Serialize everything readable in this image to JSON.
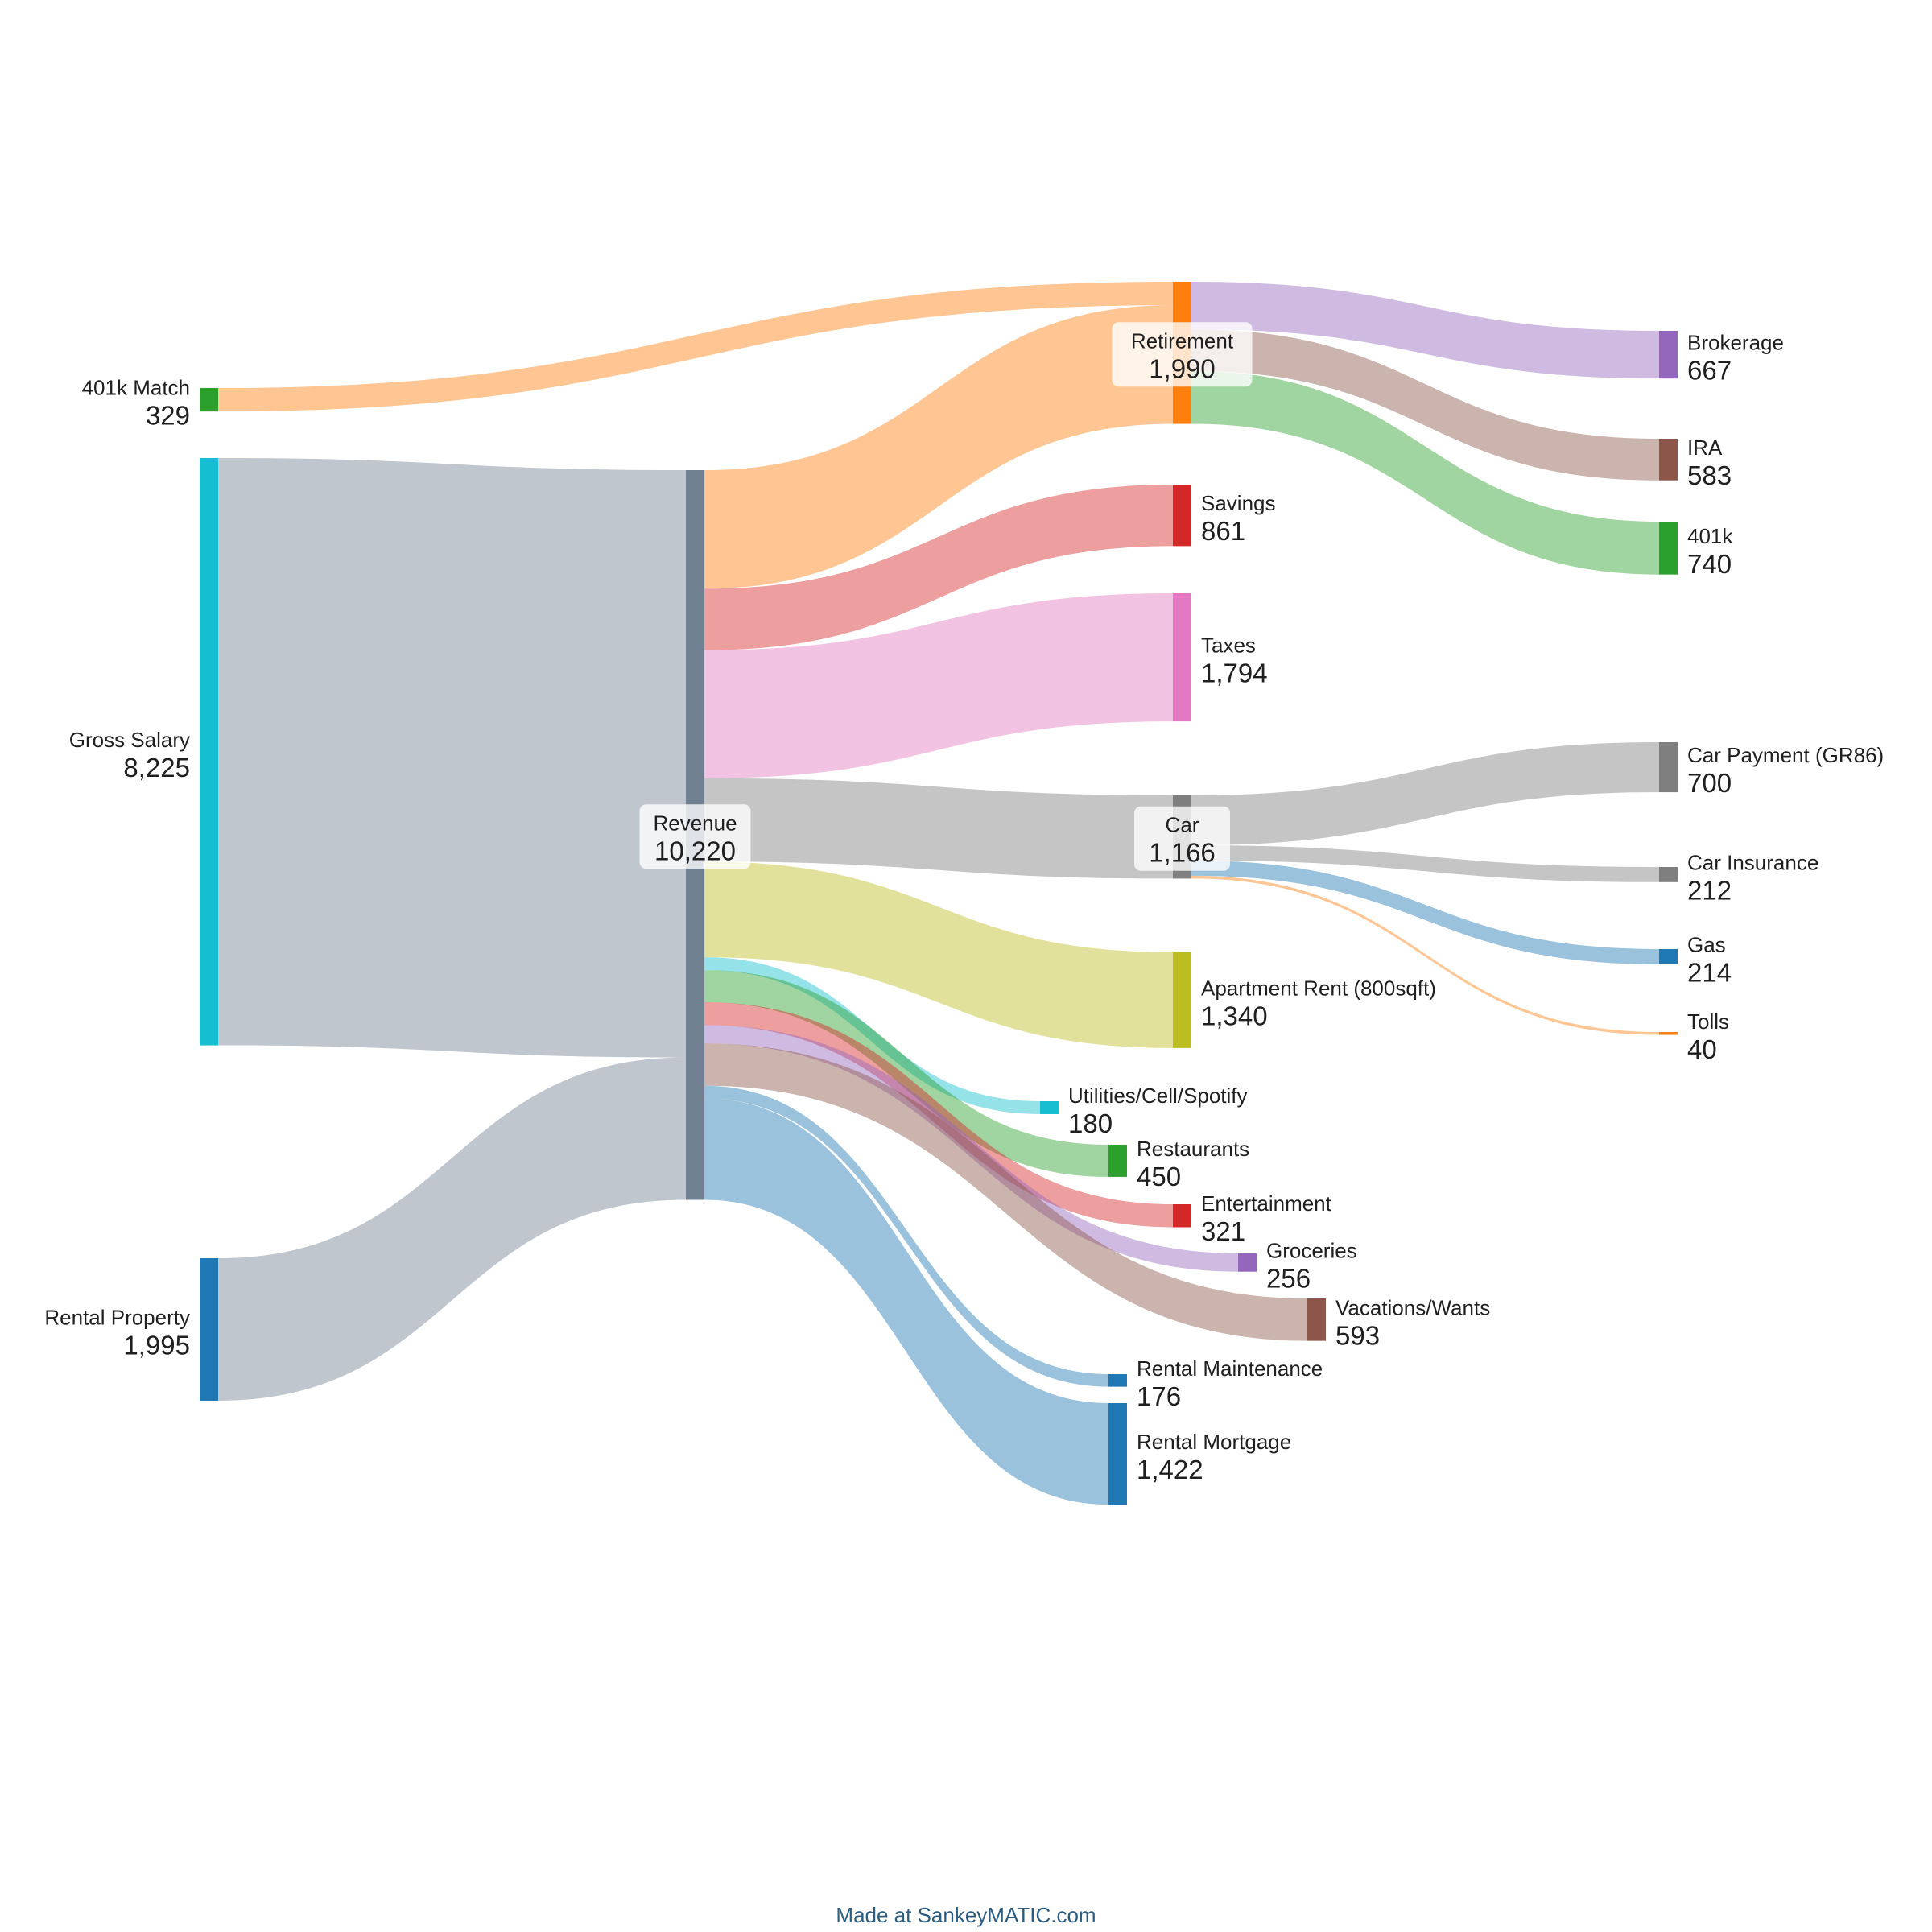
{
  "chart_data": {
    "type": "sankey",
    "title": "",
    "nodes": [
      {
        "id": "401k Match",
        "label": "401k Match",
        "value": "329",
        "color": "#2ca02c"
      },
      {
        "id": "Gross Salary",
        "label": "Gross Salary",
        "value": "8,225",
        "color": "#17becf"
      },
      {
        "id": "Rental Property",
        "label": "Rental Property",
        "value": "1,995",
        "color": "#1f77b4"
      },
      {
        "id": "Revenue",
        "label": "Revenue",
        "value": "10,220",
        "color": "#708090"
      },
      {
        "id": "Retirement",
        "label": "Retirement",
        "value": "1,990",
        "color": "#ff7f0e"
      },
      {
        "id": "Savings",
        "label": "Savings",
        "value": "861",
        "color": "#d62728"
      },
      {
        "id": "Taxes",
        "label": "Taxes",
        "value": "1,794",
        "color": "#e377c2"
      },
      {
        "id": "Car",
        "label": "Car",
        "value": "1,166",
        "color": "#7f7f7f"
      },
      {
        "id": "Apartment Rent (800sqft)",
        "label": "Apartment Rent (800sqft)",
        "value": "1,340",
        "color": "#bcbd22"
      },
      {
        "id": "Utilities/Cell/Spotify",
        "label": "Utilities/Cell/Spotify",
        "value": "180",
        "color": "#17becf"
      },
      {
        "id": "Restaurants",
        "label": "Restaurants",
        "value": "450",
        "color": "#2ca02c"
      },
      {
        "id": "Entertainment",
        "label": "Entertainment",
        "value": "321",
        "color": "#d62728"
      },
      {
        "id": "Groceries",
        "label": "Groceries",
        "value": "256",
        "color": "#9467bd"
      },
      {
        "id": "Vacations/Wants",
        "label": "Vacations/Wants",
        "value": "593",
        "color": "#8c564b"
      },
      {
        "id": "Rental Maintenance",
        "label": "Rental Maintenance",
        "value": "176",
        "color": "#1f77b4"
      },
      {
        "id": "Rental Mortgage",
        "label": "Rental Mortgage",
        "value": "1,422",
        "color": "#1f77b4"
      },
      {
        "id": "Brokerage",
        "label": "Brokerage",
        "value": "667",
        "color": "#9467bd"
      },
      {
        "id": "IRA",
        "label": "IRA",
        "value": "583",
        "color": "#8c564b"
      },
      {
        "id": "401k",
        "label": "401k",
        "value": "740",
        "color": "#2ca02c"
      },
      {
        "id": "Car Payment (GR86)",
        "label": "Car Payment (GR86)",
        "value": "700",
        "color": "#7f7f7f"
      },
      {
        "id": "Car Insurance",
        "label": "Car Insurance",
        "value": "212",
        "color": "#7f7f7f"
      },
      {
        "id": "Gas",
        "label": "Gas",
        "value": "214",
        "color": "#1f77b4"
      },
      {
        "id": "Tolls",
        "label": "Tolls",
        "value": "40",
        "color": "#ff7f0e"
      }
    ],
    "links": [
      {
        "source": "401k Match",
        "target": "Retirement",
        "value": 329
      },
      {
        "source": "Gross Salary",
        "target": "Revenue",
        "value": 8225
      },
      {
        "source": "Rental Property",
        "target": "Revenue",
        "value": 1995
      },
      {
        "source": "Revenue",
        "target": "Retirement",
        "value": 1661
      },
      {
        "source": "Revenue",
        "target": "Savings",
        "value": 861
      },
      {
        "source": "Revenue",
        "target": "Taxes",
        "value": 1794
      },
      {
        "source": "Revenue",
        "target": "Car",
        "value": 1166
      },
      {
        "source": "Revenue",
        "target": "Apartment Rent (800sqft)",
        "value": 1340
      },
      {
        "source": "Revenue",
        "target": "Utilities/Cell/Spotify",
        "value": 180
      },
      {
        "source": "Revenue",
        "target": "Restaurants",
        "value": 450
      },
      {
        "source": "Revenue",
        "target": "Entertainment",
        "value": 321
      },
      {
        "source": "Revenue",
        "target": "Groceries",
        "value": 256
      },
      {
        "source": "Revenue",
        "target": "Vacations/Wants",
        "value": 593
      },
      {
        "source": "Revenue",
        "target": "Rental Maintenance",
        "value": 176
      },
      {
        "source": "Revenue",
        "target": "Rental Mortgage",
        "value": 1422
      },
      {
        "source": "Retirement",
        "target": "Brokerage",
        "value": 667
      },
      {
        "source": "Retirement",
        "target": "IRA",
        "value": 583
      },
      {
        "source": "Retirement",
        "target": "401k",
        "value": 740
      },
      {
        "source": "Car",
        "target": "Car Payment (GR86)",
        "value": 700
      },
      {
        "source": "Car",
        "target": "Car Insurance",
        "value": 212
      },
      {
        "source": "Car",
        "target": "Gas",
        "value": 214
      },
      {
        "source": "Car",
        "target": "Tolls",
        "value": 40
      }
    ]
  },
  "footer": {
    "credit": "Made at SankeyMATIC.com"
  }
}
